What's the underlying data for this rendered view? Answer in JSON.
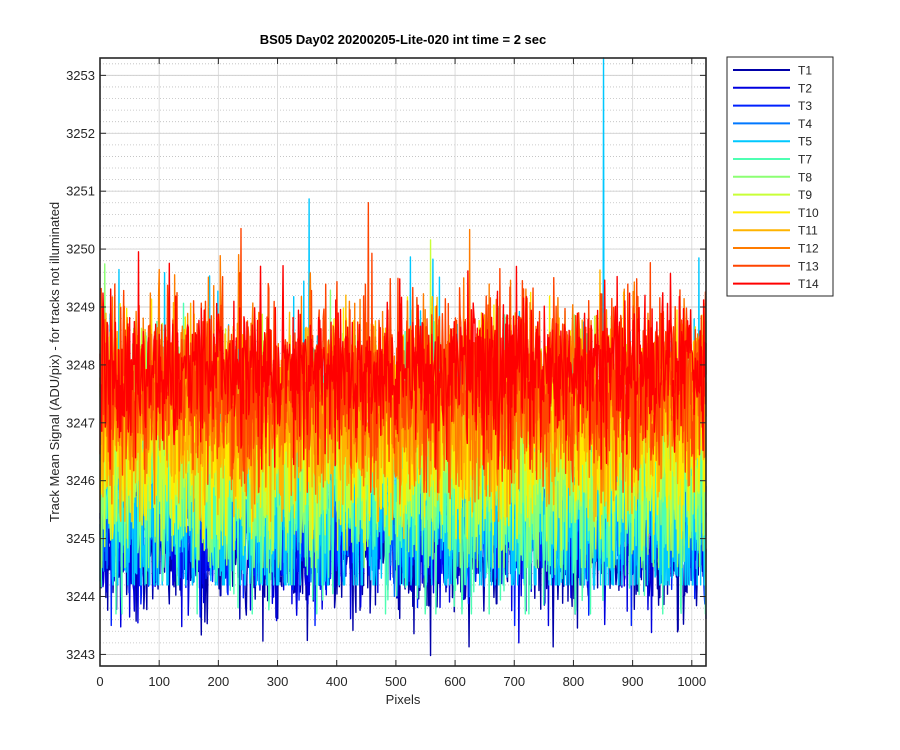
{
  "chart_data": {
    "type": "line",
    "title": "BS05 Day02 20200205-Lite-020 int time = 2 sec",
    "xlabel": "Pixels",
    "ylabel": "Track Mean Signal (ADU/pix) - for tracks not illuminated",
    "xlim": [
      0,
      1024
    ],
    "ylim": [
      3242.8,
      3253.3
    ],
    "xticks": [
      0,
      100,
      200,
      300,
      400,
      500,
      600,
      700,
      800,
      900,
      1000
    ],
    "yticks": [
      3243,
      3244,
      3245,
      3246,
      3247,
      3248,
      3249,
      3250,
      3251,
      3252,
      3253
    ],
    "y_minor_step": 0.2,
    "grid": true,
    "legend_placement": "outside-right",
    "points_per_series": 1024,
    "series": [
      {
        "name": "T1",
        "color": "#0000a8",
        "mean": 3244.8,
        "min": 3242.8,
        "max": 3246.3
      },
      {
        "name": "T2",
        "color": "#0000df",
        "mean": 3245.0,
        "min": 3243.2,
        "max": 3246.6
      },
      {
        "name": "T3",
        "color": "#0021ff",
        "mean": 3245.2,
        "min": 3243.5,
        "max": 3246.9
      },
      {
        "name": "T4",
        "color": "#0078ff",
        "mean": 3245.5,
        "min": 3244.0,
        "max": 3247.1
      },
      {
        "name": "T5",
        "color": "#00c8ff",
        "mean": 3245.7,
        "min": 3244.2,
        "max": 3253.3,
        "spikes": [
          {
            "x": 850,
            "y": 3253.3
          }
        ]
      },
      {
        "name": "T7",
        "color": "#4dffb2",
        "mean": 3246.0,
        "min": 3243.7,
        "max": 3250.3
      },
      {
        "name": "T8",
        "color": "#8cff73",
        "mean": 3246.3,
        "min": 3244.5,
        "max": 3250.5
      },
      {
        "name": "T9",
        "color": "#c8ff37",
        "mean": 3246.6,
        "min": 3244.8,
        "max": 3250.4
      },
      {
        "name": "T10",
        "color": "#ffec00",
        "mean": 3246.9,
        "min": 3245.0,
        "max": 3250.4
      },
      {
        "name": "T11",
        "color": "#ffb400",
        "mean": 3247.2,
        "min": 3245.3,
        "max": 3250.5
      },
      {
        "name": "T12",
        "color": "#ff7c00",
        "mean": 3247.5,
        "min": 3245.6,
        "max": 3250.6
      },
      {
        "name": "T13",
        "color": "#ff4400",
        "mean": 3247.7,
        "min": 3245.8,
        "max": 3250.8
      },
      {
        "name": "T14",
        "color": "#ff0000",
        "mean": 3247.95,
        "min": 3246.2,
        "max": 3250.4
      }
    ]
  }
}
